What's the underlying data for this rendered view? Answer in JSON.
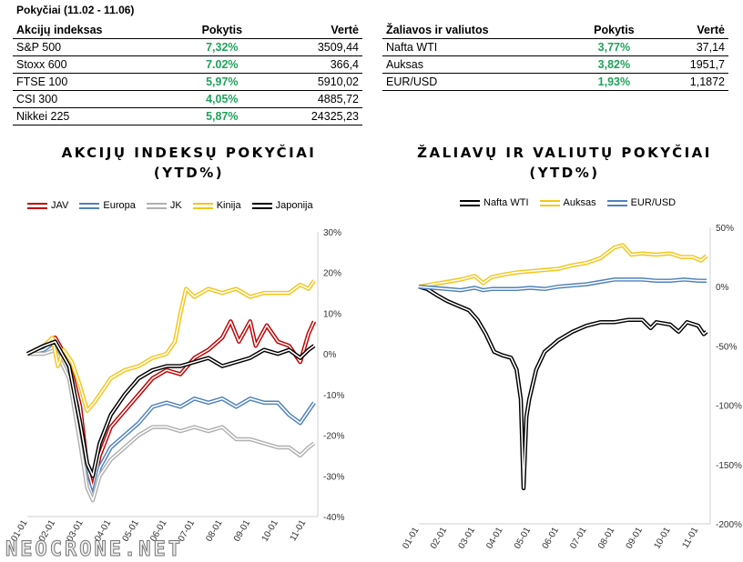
{
  "header": {
    "title": "Pokyčiai (11.02 - 11.06)"
  },
  "table_indices": {
    "headers": [
      "Akcijų indeksas",
      "Pokytis",
      "Vertė"
    ],
    "rows": [
      [
        "S&P 500",
        "7,32%",
        "3509,44"
      ],
      [
        "Stoxx 600",
        "7.02%",
        "366,4"
      ],
      [
        "FTSE 100",
        "5,97%",
        "5910,02"
      ],
      [
        "CSI 300",
        "4,05%",
        "4885,72"
      ],
      [
        "Nikkei 225",
        "5,87%",
        "24325,23"
      ]
    ]
  },
  "table_commodities": {
    "headers": [
      "Žaliavos ir valiutos",
      "Pokytis",
      "Vertė"
    ],
    "rows": [
      [
        "Nafta WTI",
        "3,77%",
        "37,14"
      ],
      [
        "Auksas",
        "3,82%",
        "1951,7"
      ],
      [
        "EUR/USD",
        "1,93%",
        "1,1872"
      ]
    ]
  },
  "colors": {
    "positive": "#1fa25a",
    "JAV": "#c00000",
    "Europa": "#4f81bd",
    "JK": "#b0b0b0",
    "Kinija": "#f5c518",
    "Japonija": "#000000",
    "Nafta WTI": "#000000",
    "Auksas": "#f5c518",
    "EUR/USD": "#4f81bd"
  },
  "watermark": "NEOCRONE.NET",
  "chart_data": [
    {
      "type": "line",
      "title_line1": "AKCIJŲ INDEKSŲ POKYČIAI",
      "title_line2": "(YTD%)",
      "ylabel_position": "right",
      "ylim": [
        -40,
        30
      ],
      "yticks": [
        "30%",
        "20%",
        "10%",
        "0%",
        "-10%",
        "-20%",
        "-30%",
        "-40%"
      ],
      "xticks": [
        "01-01",
        "02-01",
        "03-01",
        "04-01",
        "05-01",
        "06-01",
        "07-01",
        "08-01",
        "09-01",
        "10-01",
        "11-01"
      ],
      "xlim": [
        0,
        10.3
      ],
      "legend_position": "top",
      "series": [
        {
          "name": "JAV",
          "points": [
            [
              0,
              0
            ],
            [
              0.6,
              2
            ],
            [
              1.0,
              4
            ],
            [
              1.5,
              -2
            ],
            [
              1.9,
              -13
            ],
            [
              2.15,
              -28
            ],
            [
              2.35,
              -33
            ],
            [
              2.6,
              -25
            ],
            [
              3,
              -18
            ],
            [
              3.5,
              -14
            ],
            [
              4,
              -10
            ],
            [
              4.5,
              -6
            ],
            [
              5,
              -4
            ],
            [
              5.5,
              -5
            ],
            [
              6,
              -1
            ],
            [
              6.5,
              1
            ],
            [
              7,
              4
            ],
            [
              7.3,
              8
            ],
            [
              7.6,
              3
            ],
            [
              8.0,
              8
            ],
            [
              8.2,
              2
            ],
            [
              8.6,
              7
            ],
            [
              9,
              3
            ],
            [
              9.4,
              2
            ],
            [
              9.8,
              -2
            ],
            [
              10.1,
              5
            ],
            [
              10.3,
              8
            ]
          ]
        },
        {
          "name": "Europa",
          "points": [
            [
              0,
              0
            ],
            [
              0.6,
              1
            ],
            [
              1.0,
              3
            ],
            [
              1.5,
              -5
            ],
            [
              1.9,
              -20
            ],
            [
              2.15,
              -31
            ],
            [
              2.35,
              -35
            ],
            [
              2.6,
              -28
            ],
            [
              3,
              -23
            ],
            [
              3.5,
              -20
            ],
            [
              4,
              -17
            ],
            [
              4.5,
              -13
            ],
            [
              5,
              -12
            ],
            [
              5.5,
              -13
            ],
            [
              6,
              -11
            ],
            [
              6.5,
              -12
            ],
            [
              7,
              -11
            ],
            [
              7.5,
              -13
            ],
            [
              8,
              -11
            ],
            [
              8.5,
              -12
            ],
            [
              9,
              -12
            ],
            [
              9.4,
              -15
            ],
            [
              9.8,
              -17
            ],
            [
              10.1,
              -14
            ],
            [
              10.3,
              -12
            ]
          ]
        },
        {
          "name": "JK",
          "points": [
            [
              0,
              0
            ],
            [
              0.6,
              0
            ],
            [
              1.0,
              1
            ],
            [
              1.5,
              -6
            ],
            [
              1.9,
              -22
            ],
            [
              2.15,
              -33
            ],
            [
              2.35,
              -36
            ],
            [
              2.6,
              -30
            ],
            [
              3,
              -26
            ],
            [
              3.5,
              -23
            ],
            [
              4,
              -20
            ],
            [
              4.5,
              -18
            ],
            [
              5,
              -18
            ],
            [
              5.5,
              -19
            ],
            [
              6,
              -18
            ],
            [
              6.5,
              -19
            ],
            [
              7,
              -18
            ],
            [
              7.5,
              -21
            ],
            [
              8,
              -21
            ],
            [
              8.5,
              -22
            ],
            [
              9,
              -23
            ],
            [
              9.4,
              -23
            ],
            [
              9.8,
              -25
            ],
            [
              10.1,
              -23
            ],
            [
              10.3,
              -22
            ]
          ]
        },
        {
          "name": "Kinija",
          "points": [
            [
              0,
              0
            ],
            [
              0.6,
              2
            ],
            [
              0.9,
              4
            ],
            [
              1.1,
              -3
            ],
            [
              1.3,
              1
            ],
            [
              1.6,
              -2
            ],
            [
              1.9,
              -8
            ],
            [
              2.15,
              -14
            ],
            [
              2.4,
              -12
            ],
            [
              2.7,
              -9
            ],
            [
              3,
              -6
            ],
            [
              3.5,
              -4
            ],
            [
              4,
              -3
            ],
            [
              4.5,
              -1
            ],
            [
              5,
              0
            ],
            [
              5.3,
              3
            ],
            [
              5.5,
              10
            ],
            [
              5.7,
              16
            ],
            [
              6,
              14
            ],
            [
              6.5,
              16
            ],
            [
              7,
              15
            ],
            [
              7.5,
              16
            ],
            [
              8,
              14
            ],
            [
              8.5,
              15
            ],
            [
              9,
              15
            ],
            [
              9.4,
              15
            ],
            [
              9.8,
              17
            ],
            [
              10.1,
              16
            ],
            [
              10.3,
              18
            ]
          ]
        },
        {
          "name": "Japonija",
          "points": [
            [
              0,
              0
            ],
            [
              0.6,
              2
            ],
            [
              1.0,
              3
            ],
            [
              1.5,
              -3
            ],
            [
              1.9,
              -17
            ],
            [
              2.15,
              -27
            ],
            [
              2.35,
              -30
            ],
            [
              2.6,
              -22
            ],
            [
              3,
              -15
            ],
            [
              3.5,
              -10
            ],
            [
              4,
              -6
            ],
            [
              4.5,
              -4
            ],
            [
              5,
              -3
            ],
            [
              5.5,
              -3
            ],
            [
              6,
              -2
            ],
            [
              6.5,
              -1
            ],
            [
              7,
              -3
            ],
            [
              7.5,
              -2
            ],
            [
              8,
              -1
            ],
            [
              8.5,
              1
            ],
            [
              9,
              0
            ],
            [
              9.4,
              1
            ],
            [
              9.8,
              -1
            ],
            [
              10.1,
              1
            ],
            [
              10.3,
              2
            ]
          ]
        }
      ]
    },
    {
      "type": "line",
      "title_line1": "ŽALIAVŲ IR VALIUTŲ POKYČIAI",
      "title_line2": "(YTD%)",
      "ylabel_position": "right",
      "ylim": [
        -200,
        50
      ],
      "yticks": [
        "50%",
        "0%",
        "-50%",
        "-100%",
        "-150%",
        "-200%"
      ],
      "xticks": [
        "01-01",
        "02-01",
        "03-01",
        "04-01",
        "05-01",
        "06-01",
        "07-01",
        "08-01",
        "09-01",
        "10-01",
        "11-01"
      ],
      "xlim": [
        0,
        10.3
      ],
      "legend_position": "top",
      "series": [
        {
          "name": "Nafta WTI",
          "points": [
            [
              0,
              0
            ],
            [
              0.3,
              -2
            ],
            [
              0.7,
              -8
            ],
            [
              1.0,
              -12
            ],
            [
              1.3,
              -15
            ],
            [
              1.8,
              -20
            ],
            [
              2.1,
              -28
            ],
            [
              2.4,
              -40
            ],
            [
              2.7,
              -55
            ],
            [
              3.0,
              -58
            ],
            [
              3.3,
              -60
            ],
            [
              3.5,
              -70
            ],
            [
              3.65,
              -95
            ],
            [
              3.75,
              -170
            ],
            [
              3.85,
              -110
            ],
            [
              3.95,
              -95
            ],
            [
              4.2,
              -70
            ],
            [
              4.5,
              -55
            ],
            [
              5,
              -45
            ],
            [
              5.5,
              -38
            ],
            [
              6,
              -33
            ],
            [
              6.5,
              -30
            ],
            [
              7,
              -30
            ],
            [
              7.5,
              -28
            ],
            [
              8,
              -28
            ],
            [
              8.3,
              -35
            ],
            [
              8.5,
              -30
            ],
            [
              9,
              -32
            ],
            [
              9.3,
              -38
            ],
            [
              9.6,
              -30
            ],
            [
              10,
              -33
            ],
            [
              10.2,
              -40
            ],
            [
              10.3,
              -38
            ]
          ]
        },
        {
          "name": "Auksas",
          "points": [
            [
              0,
              0
            ],
            [
              0.5,
              2
            ],
            [
              1,
              4
            ],
            [
              1.5,
              6
            ],
            [
              2,
              9
            ],
            [
              2.3,
              3
            ],
            [
              2.6,
              8
            ],
            [
              3,
              10
            ],
            [
              3.5,
              12
            ],
            [
              4,
              13
            ],
            [
              4.5,
              14
            ],
            [
              5,
              15
            ],
            [
              5.5,
              18
            ],
            [
              6,
              20
            ],
            [
              6.5,
              24
            ],
            [
              7,
              33
            ],
            [
              7.3,
              35
            ],
            [
              7.6,
              27
            ],
            [
              8,
              28
            ],
            [
              8.5,
              27
            ],
            [
              9,
              28
            ],
            [
              9.4,
              25
            ],
            [
              9.8,
              25
            ],
            [
              10.1,
              22
            ],
            [
              10.3,
              26
            ]
          ]
        },
        {
          "name": "EUR/USD",
          "points": [
            [
              0,
              0
            ],
            [
              0.5,
              -1
            ],
            [
              1,
              -2
            ],
            [
              1.5,
              -3
            ],
            [
              2,
              -1
            ],
            [
              2.3,
              -3
            ],
            [
              2.6,
              -2
            ],
            [
              3,
              -2
            ],
            [
              3.5,
              -2
            ],
            [
              4,
              -1
            ],
            [
              4.5,
              -2
            ],
            [
              5,
              0
            ],
            [
              5.5,
              1
            ],
            [
              6,
              2
            ],
            [
              6.5,
              4
            ],
            [
              7,
              6
            ],
            [
              7.5,
              6
            ],
            [
              8,
              6
            ],
            [
              8.5,
              5
            ],
            [
              9,
              5
            ],
            [
              9.5,
              6
            ],
            [
              10,
              5
            ],
            [
              10.3,
              5
            ]
          ]
        }
      ]
    }
  ]
}
